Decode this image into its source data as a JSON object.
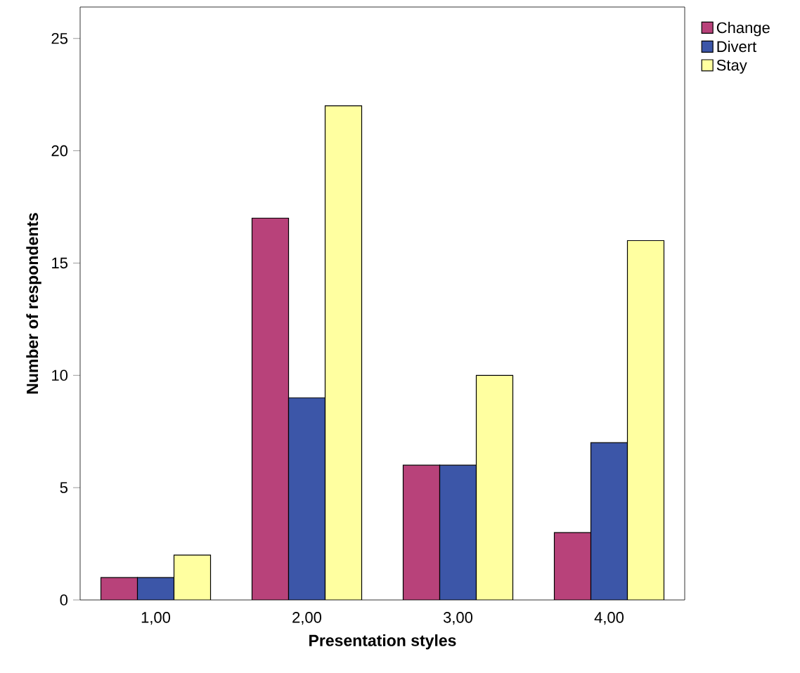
{
  "chart_data": {
    "type": "bar",
    "xlabel": "Presentation styles",
    "ylabel": "Number of respondents",
    "categories": [
      "1,00",
      "2,00",
      "3,00",
      "4,00"
    ],
    "series": [
      {
        "name": "Change",
        "color": "#b8427a",
        "values": [
          1,
          17,
          6,
          3
        ]
      },
      {
        "name": "Divert",
        "color": "#3c56a8",
        "values": [
          1,
          9,
          6,
          7
        ]
      },
      {
        "name": "Stay",
        "color": "#ffffa0",
        "values": [
          2,
          22,
          10,
          16
        ]
      }
    ],
    "ylim": [
      0,
      26.4
    ],
    "yticks": [
      0,
      5,
      10,
      15,
      20,
      25
    ],
    "legend": "top right"
  }
}
